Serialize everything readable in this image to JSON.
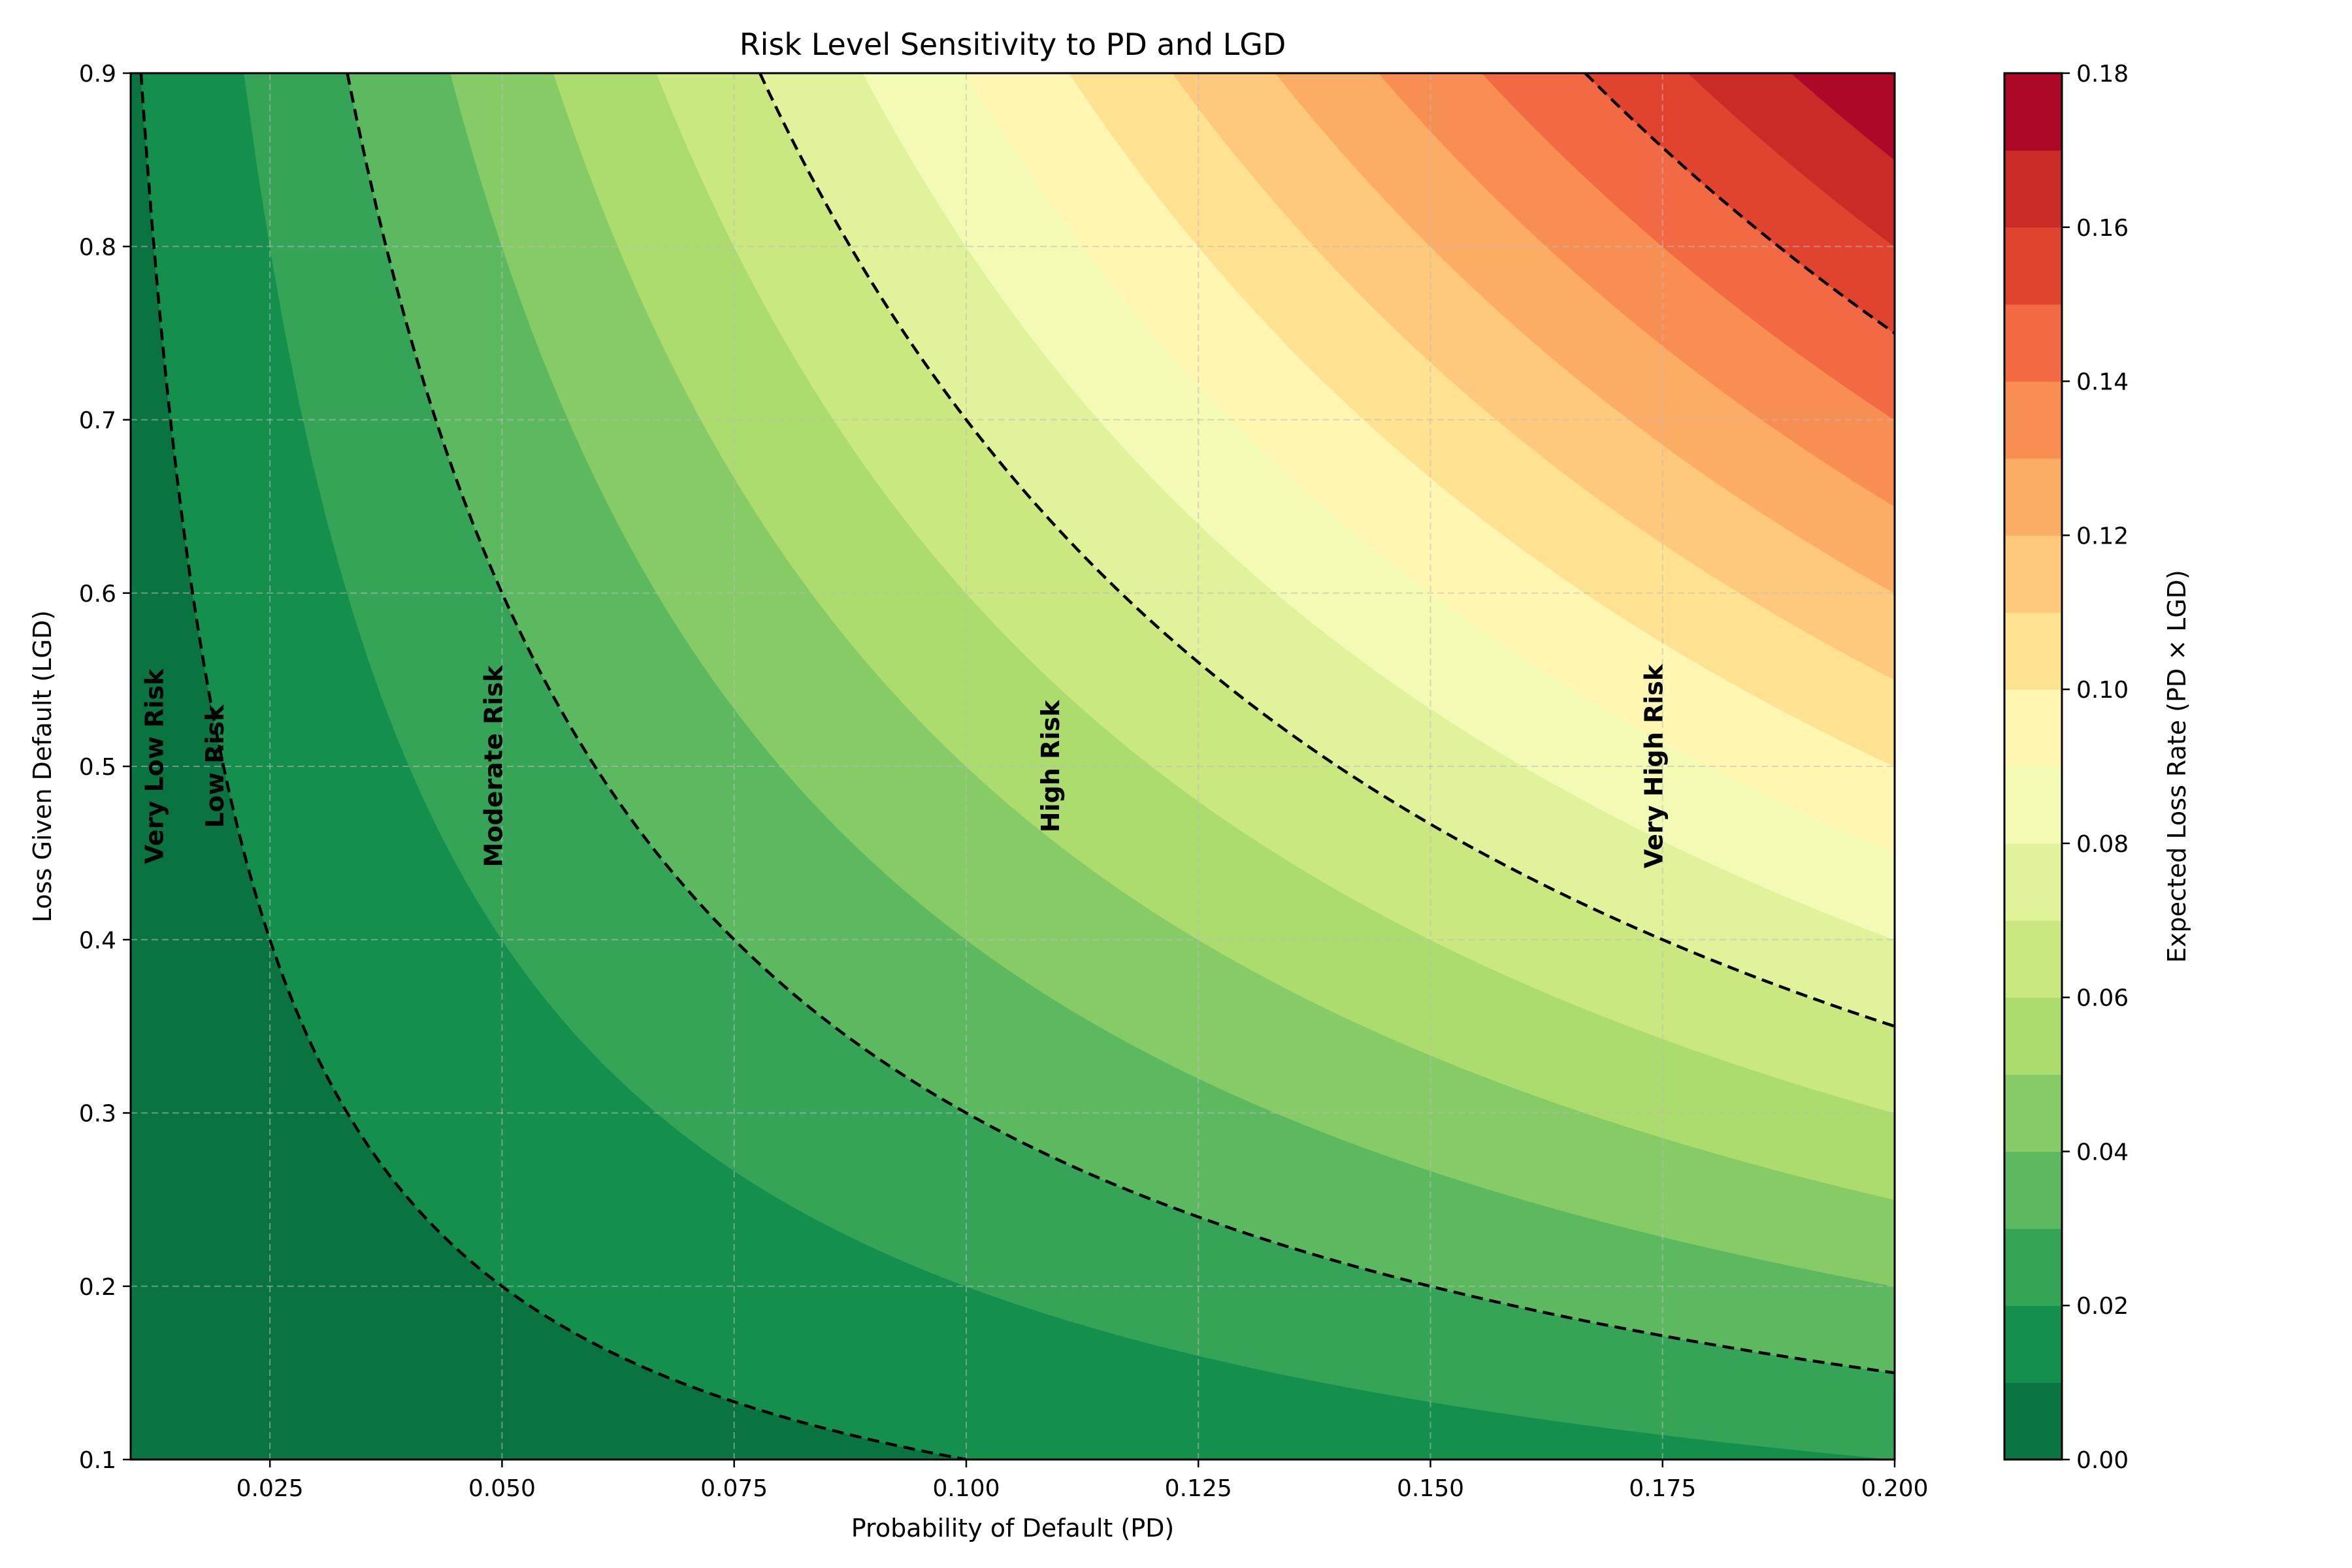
{
  "chart_data": {
    "type": "heatmap",
    "title": "Risk Level Sensitivity to PD and LGD",
    "xlabel": "Probability of Default (PD)",
    "ylabel": "Loss Given Default (LGD)",
    "colorbar_label": "Expected Loss Rate (PD × LGD)",
    "function": "PD × LGD",
    "xlim": [
      0.01,
      0.2
    ],
    "ylim": [
      0.1,
      0.9
    ],
    "x_ticks": [
      "0.025",
      "0.050",
      "0.075",
      "0.100",
      "0.125",
      "0.150",
      "0.175",
      "0.200"
    ],
    "x_tick_values": [
      0.025,
      0.05,
      0.075,
      0.1,
      0.125,
      0.15,
      0.175,
      0.2
    ],
    "y_ticks": [
      "0.1",
      "0.2",
      "0.3",
      "0.4",
      "0.5",
      "0.6",
      "0.7",
      "0.8",
      "0.9"
    ],
    "y_tick_values": [
      0.1,
      0.2,
      0.3,
      0.4,
      0.5,
      0.6,
      0.7,
      0.8,
      0.9
    ],
    "colorbar_ticks": [
      "0.00",
      "0.02",
      "0.04",
      "0.06",
      "0.08",
      "0.10",
      "0.12",
      "0.14",
      "0.16",
      "0.18"
    ],
    "colorbar_tick_values": [
      0,
      0.02,
      0.04,
      0.06,
      0.08,
      0.1,
      0.12,
      0.14,
      0.16,
      0.18
    ],
    "levels": [
      0,
      0.01,
      0.02,
      0.03,
      0.04,
      0.05,
      0.06,
      0.07,
      0.08,
      0.09,
      0.1,
      0.11,
      0.12,
      0.13,
      0.14,
      0.15,
      0.16,
      0.17,
      0.18
    ],
    "colors": [
      "#0a7440",
      "#148f4c",
      "#35a456",
      "#5cb95f",
      "#86cb66",
      "#acdc6e",
      "#c9e880",
      "#e1f39a",
      "#f3fab4",
      "#fef6b1",
      "#fee291",
      "#fec97b",
      "#fdac64",
      "#f98e52",
      "#f16a43",
      "#e0442f",
      "#cb2b27",
      "#ad0828"
    ],
    "contour_thresholds": [
      0.01,
      0.03,
      0.07,
      0.15
    ],
    "grid": true,
    "regions": [
      {
        "label": "Very Low Risk",
        "pd": 0.0135,
        "lgd": 0.5
      },
      {
        "label": "Low Risk",
        "pd": 0.02,
        "lgd": 0.5
      },
      {
        "label": "Moderate Risk",
        "pd": 0.05,
        "lgd": 0.5
      },
      {
        "label": "High Risk",
        "pd": 0.11,
        "lgd": 0.5
      },
      {
        "label": "Very High Risk",
        "pd": 0.175,
        "lgd": 0.5
      }
    ]
  }
}
